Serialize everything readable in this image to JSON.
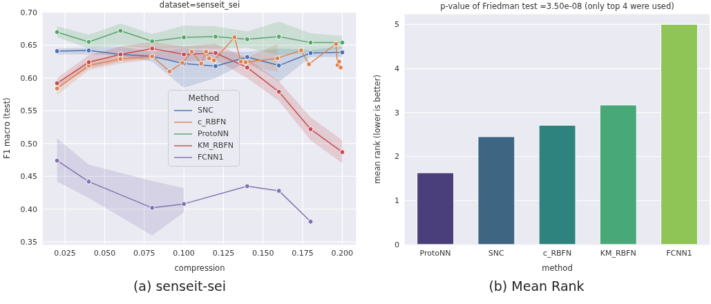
{
  "chart_data": [
    {
      "type": "line",
      "title": "dataset=senseit_sei",
      "xlabel": "compression",
      "ylabel": "F1 macro (test)",
      "legend_title": "Method",
      "legend": "center",
      "grid": true,
      "marker": "circle",
      "line_style": "solid",
      "xlim": [
        0.011,
        0.209
      ],
      "xticks": [
        {
          "value": 0.025,
          "label": "0.025"
        },
        {
          "value": 0.05,
          "label": "0.050"
        },
        {
          "value": 0.075,
          "label": "0.075"
        },
        {
          "value": 0.1,
          "label": "0.100"
        },
        {
          "value": 0.125,
          "label": "0.125"
        },
        {
          "value": 0.15,
          "label": "0.150"
        },
        {
          "value": 0.175,
          "label": "0.175"
        },
        {
          "value": 0.2,
          "label": "0.200"
        }
      ],
      "ylim": [
        0.346,
        0.701
      ],
      "yticks": [
        {
          "value": 0.35,
          "label": "0.35"
        },
        {
          "value": 0.4,
          "label": "0.40"
        },
        {
          "value": 0.45,
          "label": "0.45"
        },
        {
          "value": 0.5,
          "label": "0.50"
        },
        {
          "value": 0.55,
          "label": "0.55"
        },
        {
          "value": 0.6,
          "label": "0.60"
        },
        {
          "value": 0.65,
          "label": "0.65"
        },
        {
          "value": 0.7,
          "label": "0.70"
        }
      ],
      "annotations": [
        "(a) senseit-sei"
      ],
      "series": [
        {
          "name": "SNC",
          "color": "#4c72b0",
          "x": [
            0.02,
            0.04,
            0.06,
            0.08,
            0.1,
            0.12,
            0.14,
            0.16,
            0.18,
            0.2
          ],
          "values": [
            0.641,
            0.642,
            0.636,
            0.633,
            0.622,
            0.618,
            0.632,
            0.619,
            0.638,
            0.639
          ],
          "lower": [
            0.636,
            0.636,
            0.634,
            0.625,
            0.585,
            0.6,
            0.625,
            0.594,
            0.632,
            0.632
          ],
          "upper": [
            0.645,
            0.646,
            0.648,
            0.64,
            0.645,
            0.64,
            0.64,
            0.645,
            0.643,
            0.648
          ]
        },
        {
          "name": "c_RBFN",
          "color": "#dd8452",
          "x": [
            0.02,
            0.04,
            0.06,
            0.08,
            0.091,
            0.099,
            0.105,
            0.111,
            0.114,
            0.116,
            0.119,
            0.132,
            0.136,
            0.139,
            0.159,
            0.174,
            0.179,
            0.196,
            0.197,
            0.198,
            0.199
          ],
          "values": [
            0.584,
            0.619,
            0.629,
            0.633,
            0.61,
            0.623,
            0.64,
            0.622,
            0.64,
            0.63,
            0.627,
            0.662,
            0.625,
            0.624,
            0.63,
            0.642,
            0.621,
            0.652,
            0.62,
            0.625,
            0.616
          ],
          "lower": [
            0.574,
            0.612,
            0.622,
            0.628,
            null,
            null,
            null,
            null,
            null,
            null,
            null,
            null,
            0.622,
            0.62,
            0.609,
            null,
            null,
            null,
            null,
            null,
            null
          ],
          "upper": [
            0.592,
            0.627,
            0.635,
            0.638,
            null,
            null,
            null,
            null,
            null,
            null,
            null,
            null,
            0.628,
            0.63,
            0.652,
            null,
            null,
            null,
            null,
            null,
            null
          ]
        },
        {
          "name": "ProtoNN",
          "color": "#55a868",
          "x": [
            0.02,
            0.04,
            0.06,
            0.08,
            0.1,
            0.12,
            0.14,
            0.16,
            0.18,
            0.2
          ],
          "values": [
            0.67,
            0.655,
            0.672,
            0.656,
            0.662,
            0.663,
            0.659,
            0.663,
            0.654,
            0.654
          ],
          "lower": [
            0.662,
            0.645,
            0.65,
            0.645,
            0.645,
            0.645,
            0.646,
            0.635,
            0.638,
            0.645
          ],
          "upper": [
            0.679,
            0.666,
            0.683,
            0.667,
            0.68,
            0.679,
            0.671,
            0.686,
            0.668,
            0.664
          ]
        },
        {
          "name": "KM_RBFN",
          "color": "#c44e52",
          "x": [
            0.02,
            0.04,
            0.06,
            0.08,
            0.1,
            0.12,
            0.14,
            0.16,
            0.18,
            0.2
          ],
          "values": [
            0.592,
            0.624,
            0.636,
            0.645,
            0.636,
            0.638,
            0.616,
            0.579,
            0.522,
            0.487
          ],
          "lower": [
            0.585,
            0.615,
            0.625,
            0.63,
            0.625,
            0.628,
            0.6,
            0.565,
            0.505,
            0.47
          ],
          "upper": [
            0.6,
            0.635,
            0.648,
            0.655,
            0.648,
            0.652,
            0.63,
            0.595,
            0.54,
            0.505
          ]
        },
        {
          "name": "FCNN1",
          "color": "#8172b3",
          "x": [
            0.02,
            0.04,
            0.08,
            0.1,
            0.14,
            0.16,
            0.18
          ],
          "values": [
            0.474,
            0.442,
            0.402,
            0.408,
            0.435,
            0.428,
            0.381
          ],
          "lower": [
            0.442,
            0.417,
            0.36,
            0.395,
            null,
            null,
            null
          ],
          "upper": [
            0.508,
            0.468,
            0.443,
            0.432,
            null,
            null,
            null
          ]
        }
      ]
    },
    {
      "type": "bar",
      "title": "p-value of Friedman test =3.50e-08 (only top 4 were used)",
      "xlabel": "method",
      "ylabel": "mean rank (lower is better)",
      "grid": "y",
      "categories": [
        "ProtoNN",
        "SNC",
        "c_RBFN",
        "KM_RBFN",
        "FCNN1"
      ],
      "values": [
        1.63,
        2.45,
        2.71,
        3.17,
        5.0
      ],
      "colors": [
        "#4a3f7a",
        "#3e6683",
        "#2e837e",
        "#48a878",
        "#8fc456"
      ],
      "ylim": [
        0,
        5.24
      ],
      "yticks": [
        0,
        1,
        2,
        3,
        4,
        5
      ],
      "annotations": [
        "(b) Mean Rank"
      ]
    }
  ]
}
